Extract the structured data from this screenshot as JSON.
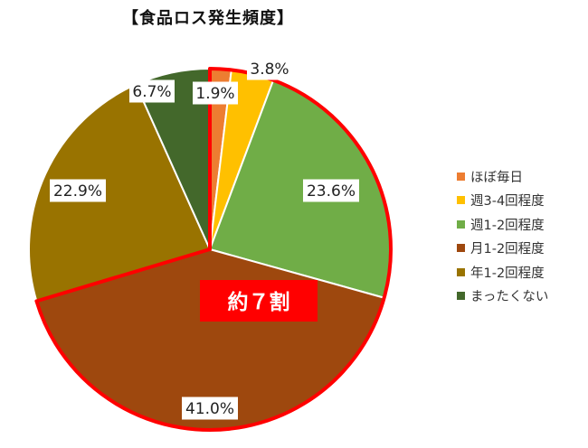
{
  "chart_data": {
    "type": "pie",
    "title": "【食品ロス発生頻度】",
    "slices": [
      {
        "label": "ほぼ毎日",
        "value": 1.9,
        "display": "1.9%",
        "color": "#ED7D31"
      },
      {
        "label": "週3-4回程度",
        "value": 3.8,
        "display": "3.8%",
        "color": "#FFC000"
      },
      {
        "label": "週1-2回程度",
        "value": 23.6,
        "display": "23.6%",
        "color": "#70AD47"
      },
      {
        "label": "月1-2回程度",
        "value": 41.0,
        "display": "41.0%",
        "color": "#9E480E"
      },
      {
        "label": "年1-2回程度",
        "value": 22.9,
        "display": "22.9%",
        "color": "#997300"
      },
      {
        "label": "まったくない",
        "value": 6.7,
        "display": "6.7%",
        "color": "#43682B"
      }
    ],
    "legend_position": "right",
    "annotation": {
      "text": "約７割",
      "highlight_color": "#FF0000",
      "highlighted_slices": [
        "ほぼ毎日",
        "週3-4回程度",
        "週1-2回程度",
        "月1-2回程度"
      ]
    }
  }
}
